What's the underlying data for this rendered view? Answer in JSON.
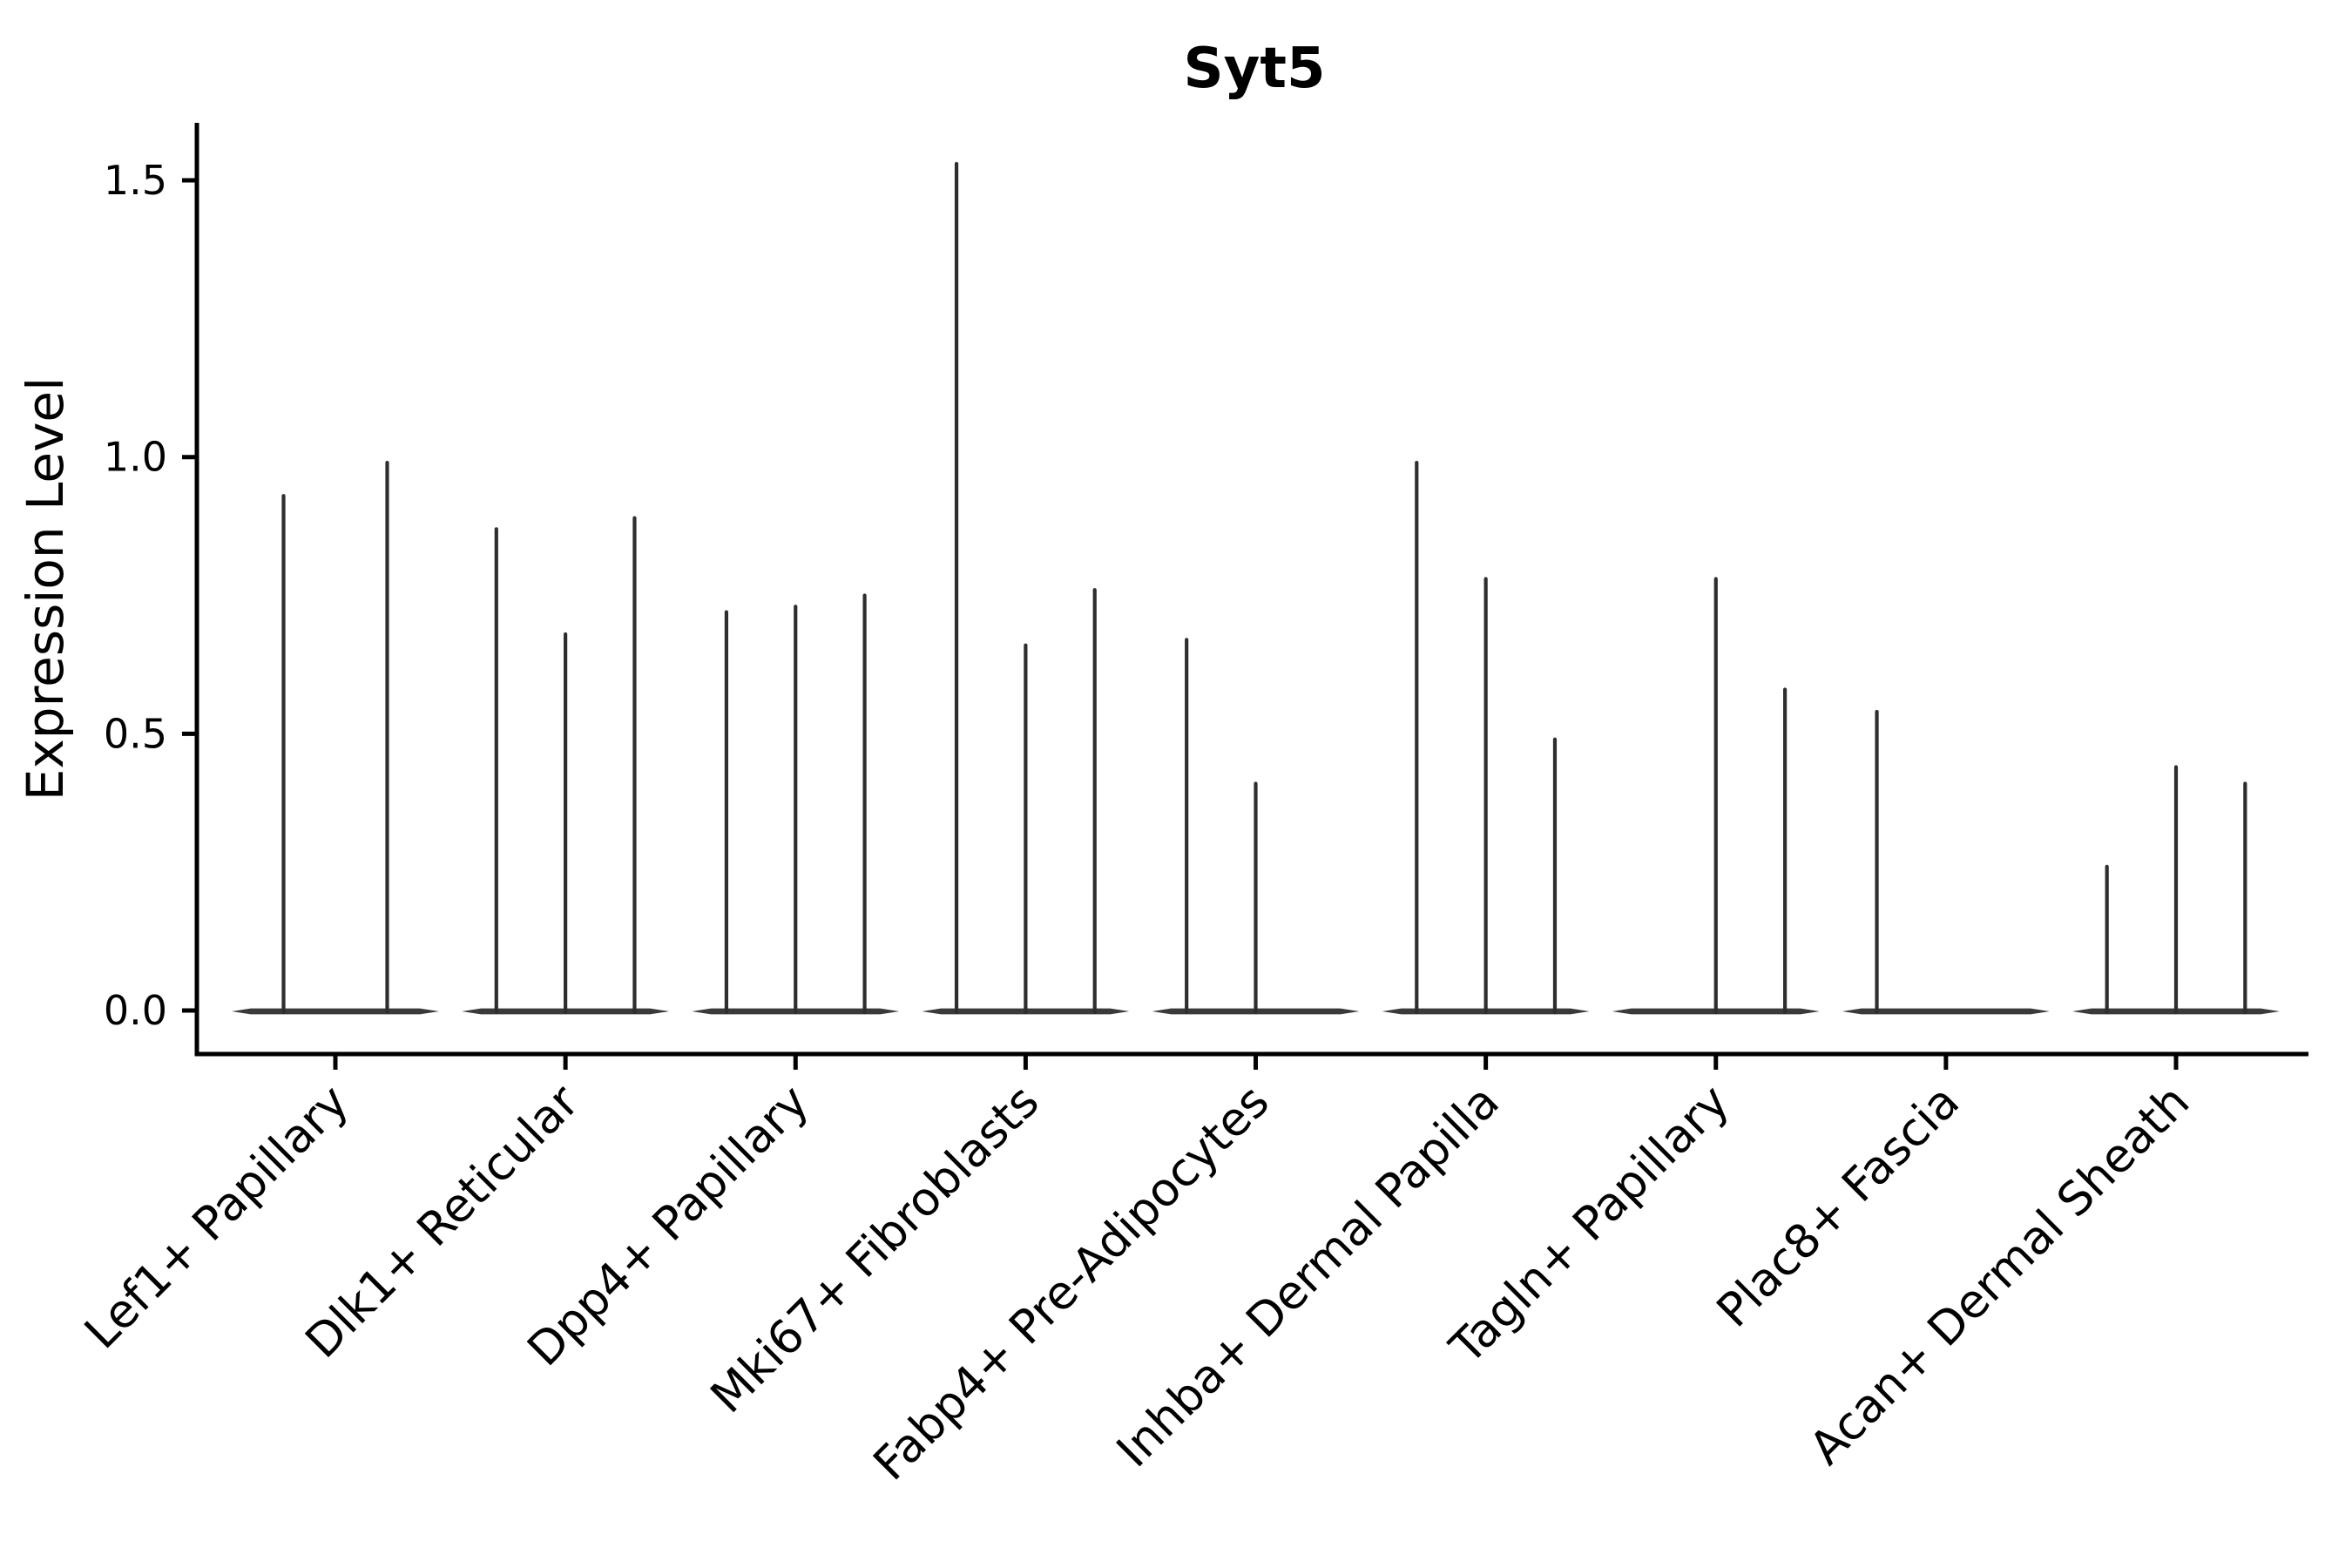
{
  "figure": {
    "title": "Syt5",
    "ylabel": "Expression Level"
  },
  "chart_data": {
    "type": "violin",
    "title": "Syt5",
    "xlabel": "",
    "ylabel": "Expression Level",
    "ylim": [
      0,
      1.6
    ],
    "yticks": [
      0.0,
      0.5,
      1.0,
      1.5
    ],
    "ytick_labels": [
      "0.0",
      "0.5",
      "1.0",
      "1.5"
    ],
    "grid": false,
    "legend": "none",
    "x_tick_rotation_deg": 45,
    "categories": [
      "Lef1+ Papillary",
      "Dlk1+ Reticular",
      "Dpp4+ Papillary",
      "Mki67+ Fibroblasts",
      "Fabp4+ Pre-Adipocytes",
      "Inhba+ Dermal Papilla",
      "Tagln+ Papillary",
      "Plac8+ Fascia",
      "Acan+ Dermal Sheath"
    ],
    "series_note": "Each category holds 2-3 collapsed violins (bulk of cells at 0) whose thin tails reach the listed max expression value; 0 means a fully flat violin at baseline.",
    "series": [
      {
        "category": "Lef1+ Papillary",
        "violin_max_values": [
          0.93,
          0.99
        ]
      },
      {
        "category": "Dlk1+ Reticular",
        "violin_max_values": [
          0.87,
          0.68,
          0.89
        ]
      },
      {
        "category": "Dpp4+ Papillary",
        "violin_max_values": [
          0.72,
          0.73,
          0.75
        ]
      },
      {
        "category": "Mki67+ Fibroblasts",
        "violin_max_values": [
          1.53,
          0.66,
          0.76
        ]
      },
      {
        "category": "Fabp4+ Pre-Adipocytes",
        "violin_max_values": [
          0.67,
          0.41,
          0.0
        ]
      },
      {
        "category": "Inhba+ Dermal Papilla",
        "violin_max_values": [
          0.99,
          0.78,
          0.49
        ]
      },
      {
        "category": "Tagln+ Papillary",
        "violin_max_values": [
          0.0,
          0.78,
          0.58
        ]
      },
      {
        "category": "Plac8+ Fascia",
        "violin_max_values": [
          0.54,
          0.0,
          0.0
        ]
      },
      {
        "category": "Acan+ Dermal Sheath",
        "violin_max_values": [
          0.26,
          0.44,
          0.41
        ]
      }
    ],
    "colors": {
      "violin_line": "#2e2e2e",
      "violin_baseline": "#3a3a3a",
      "axis": "#000000",
      "background": "#ffffff"
    }
  }
}
